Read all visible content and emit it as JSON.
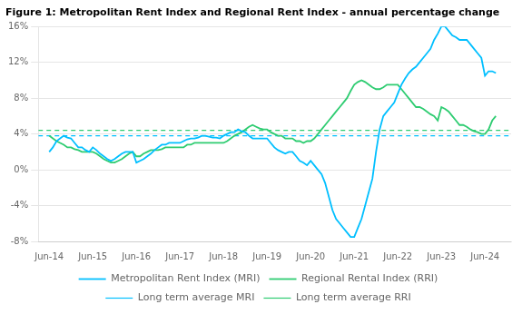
{
  "chart_data": {
    "type": "line",
    "title": "Figure 1: Metropolitan Rent Index and Regional Rent Index - annual percentage change",
    "x": [
      2014.0,
      2014.083,
      2014.167,
      2014.25,
      2014.333,
      2014.417,
      2014.5,
      2014.583,
      2014.667,
      2014.75,
      2014.833,
      2014.917,
      2015.0,
      2015.083,
      2015.167,
      2015.25,
      2015.333,
      2015.417,
      2015.5,
      2015.583,
      2015.667,
      2015.75,
      2015.833,
      2015.917,
      2016.0,
      2016.083,
      2016.167,
      2016.25,
      2016.333,
      2016.417,
      2016.5,
      2016.583,
      2016.667,
      2016.75,
      2016.833,
      2016.917,
      2017.0,
      2017.083,
      2017.167,
      2017.25,
      2017.333,
      2017.417,
      2017.5,
      2017.583,
      2017.667,
      2017.75,
      2017.833,
      2017.917,
      2018.0,
      2018.083,
      2018.167,
      2018.25,
      2018.333,
      2018.417,
      2018.5,
      2018.583,
      2018.667,
      2018.75,
      2018.833,
      2018.917,
      2019.0,
      2019.083,
      2019.167,
      2019.25,
      2019.333,
      2019.417,
      2019.5,
      2019.583,
      2019.667,
      2019.75,
      2019.833,
      2019.917,
      2020.0,
      2020.083,
      2020.167,
      2020.25,
      2020.333,
      2020.417,
      2020.5,
      2020.583,
      2020.667,
      2020.75,
      2020.833,
      2020.917,
      2021.0,
      2021.083,
      2021.167,
      2021.25,
      2021.333,
      2021.417,
      2021.5,
      2021.583,
      2021.667,
      2021.75,
      2021.833,
      2021.917,
      2022.0,
      2022.083,
      2022.167,
      2022.25,
      2022.333,
      2022.417,
      2022.5,
      2022.583,
      2022.667,
      2022.75,
      2022.833,
      2022.917,
      2023.0,
      2023.083,
      2023.167,
      2023.25,
      2023.333,
      2023.417,
      2023.5,
      2023.583,
      2023.667,
      2023.75,
      2023.833,
      2023.917,
      2024.0,
      2024.083,
      2024.167,
      2024.25
    ],
    "series": [
      {
        "name": "Metropolitan Rent Index (MRI)",
        "color": "#00BFFF",
        "values": [
          2.0,
          2.5,
          3.2,
          3.5,
          3.8,
          3.6,
          3.5,
          3.0,
          2.5,
          2.5,
          2.2,
          2.0,
          2.5,
          2.2,
          1.8,
          1.5,
          1.2,
          1.0,
          1.2,
          1.5,
          1.8,
          2.0,
          2.0,
          2.0,
          0.8,
          1.0,
          1.2,
          1.5,
          1.8,
          2.2,
          2.5,
          2.8,
          2.8,
          3.0,
          3.0,
          3.0,
          3.0,
          3.2,
          3.4,
          3.5,
          3.5,
          3.6,
          3.8,
          3.8,
          3.7,
          3.6,
          3.6,
          3.5,
          3.8,
          4.0,
          4.2,
          4.2,
          4.5,
          4.3,
          4.2,
          3.8,
          3.5,
          3.5,
          3.5,
          3.5,
          3.5,
          3.0,
          2.5,
          2.2,
          2.0,
          1.8,
          2.0,
          2.0,
          1.5,
          1.0,
          0.8,
          0.5,
          1.0,
          0.5,
          0.0,
          -0.5,
          -1.5,
          -3.0,
          -4.5,
          -5.5,
          -6.0,
          -6.5,
          -7.0,
          -7.5,
          -7.5,
          -6.5,
          -5.5,
          -4.0,
          -2.5,
          -1.0,
          2.0,
          4.5,
          6.0,
          6.5,
          7.0,
          7.5,
          8.5,
          9.5,
          10.2,
          10.8,
          11.2,
          11.5,
          12.0,
          12.5,
          13.0,
          13.5,
          14.5,
          15.2,
          16.0,
          16.0,
          15.5,
          15.0,
          14.8,
          14.5,
          14.5,
          14.5,
          14.0,
          13.5,
          13.0,
          12.5,
          10.5,
          11.0,
          11.0,
          10.8
        ]
      },
      {
        "name": "Regional Rental Index (RRI)",
        "color": "#2ECC71",
        "values": [
          3.8,
          3.5,
          3.2,
          3.0,
          2.8,
          2.5,
          2.5,
          2.3,
          2.2,
          2.0,
          2.0,
          2.0,
          2.0,
          1.8,
          1.5,
          1.2,
          1.0,
          0.8,
          0.8,
          1.0,
          1.2,
          1.5,
          1.8,
          2.0,
          1.5,
          1.5,
          1.8,
          2.0,
          2.2,
          2.2,
          2.2,
          2.3,
          2.5,
          2.5,
          2.5,
          2.5,
          2.5,
          2.5,
          2.8,
          2.8,
          3.0,
          3.0,
          3.0,
          3.0,
          3.0,
          3.0,
          3.0,
          3.0,
          3.0,
          3.2,
          3.5,
          3.8,
          4.0,
          4.2,
          4.5,
          4.8,
          5.0,
          4.8,
          4.6,
          4.5,
          4.5,
          4.2,
          4.0,
          3.8,
          3.8,
          3.5,
          3.5,
          3.5,
          3.2,
          3.2,
          3.0,
          3.2,
          3.2,
          3.5,
          4.0,
          4.5,
          5.0,
          5.5,
          6.0,
          6.5,
          7.0,
          7.5,
          8.0,
          8.8,
          9.5,
          9.8,
          10.0,
          9.8,
          9.5,
          9.2,
          9.0,
          9.0,
          9.2,
          9.5,
          9.5,
          9.5,
          9.5,
          9.0,
          8.5,
          8.0,
          7.5,
          7.0,
          7.0,
          6.8,
          6.5,
          6.2,
          6.0,
          5.5,
          7.0,
          6.8,
          6.5,
          6.0,
          5.5,
          5.0,
          5.0,
          4.8,
          4.5,
          4.3,
          4.2,
          4.0,
          4.0,
          4.5,
          5.5,
          6.0
        ]
      },
      {
        "name": "Long term average MRI",
        "color": "#00BFFF",
        "type": "hline",
        "line_style": "dashed",
        "value": 3.8
      },
      {
        "name": "Long term average RRI",
        "color": "#2ECC71",
        "type": "hline",
        "line_style": "dashed",
        "value": 4.4
      }
    ],
    "xlim": [
      2013.75,
      2024.6
    ],
    "xticks": [
      {
        "value": 2014,
        "label": "Jun-14"
      },
      {
        "value": 2015,
        "label": "Jun-15"
      },
      {
        "value": 2016,
        "label": "Jun-16"
      },
      {
        "value": 2017,
        "label": "Jun-17"
      },
      {
        "value": 2018,
        "label": "Jun-18"
      },
      {
        "value": 2019,
        "label": "Jun-19"
      },
      {
        "value": 2020,
        "label": "Jun-20"
      },
      {
        "value": 2021,
        "label": "Jun-21"
      },
      {
        "value": 2022,
        "label": "Jun-22"
      },
      {
        "value": 2023,
        "label": "Jun-23"
      },
      {
        "value": 2024,
        "label": "Jun-24"
      }
    ],
    "ylim": [
      -8,
      16
    ],
    "yticks": [
      {
        "value": -8,
        "label": "-8%"
      },
      {
        "value": -4,
        "label": "-4%"
      },
      {
        "value": 0,
        "label": "0%"
      },
      {
        "value": 4,
        "label": "4%"
      },
      {
        "value": 8,
        "label": "8%"
      },
      {
        "value": 12,
        "label": "12%"
      },
      {
        "value": 16,
        "label": "16%"
      }
    ],
    "grid": "y",
    "legend": "bottom"
  }
}
